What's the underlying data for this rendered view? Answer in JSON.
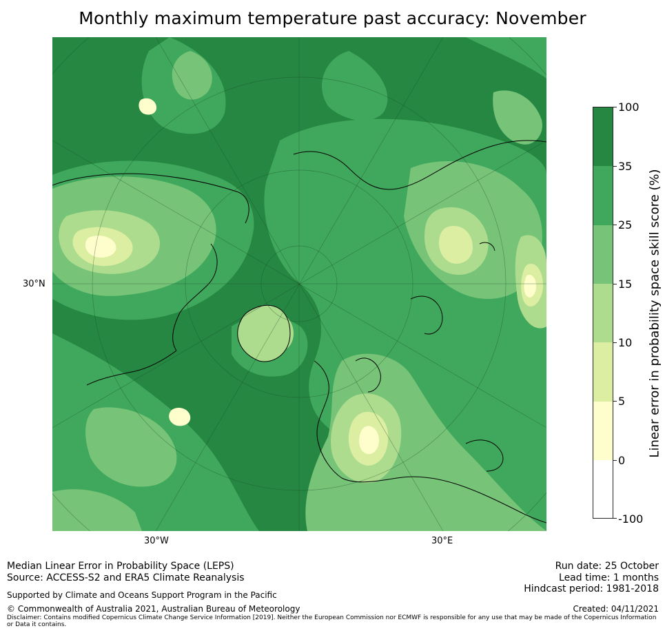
{
  "title": "Monthly maximum temperature past accuracy: November",
  "map": {
    "projection": "North Polar Stereographic",
    "lat_label": "30°N",
    "lon_labels": [
      "30°W",
      "30°E"
    ]
  },
  "colorbar": {
    "title": "Linear error in probability space skill score (%)",
    "tick_labels": [
      "100",
      "35",
      "25",
      "15",
      "10",
      "5",
      "0",
      "-100"
    ],
    "bins": [
      {
        "range": "35 to 100",
        "color": "#258741"
      },
      {
        "range": "25 to 35",
        "color": "#40a85c"
      },
      {
        "range": "15 to 25",
        "color": "#77c479"
      },
      {
        "range": "10 to 15",
        "color": "#aedc8e"
      },
      {
        "range": "5 to 10",
        "color": "#dbeea2"
      },
      {
        "range": "0 to 5",
        "color": "#fdfecb"
      },
      {
        "range": "-100 to 0",
        "color": "#ffffff"
      }
    ]
  },
  "footer": {
    "method": "Median Linear Error in Probability Space (LEPS)",
    "source": "Source: ACCESS-S2 and ERA5 Climate Reanalysis",
    "support": "Supported by Climate and Oceans Support Program in the Pacific",
    "copyright": "© Commonwealth of Australia 2021, Australian Bureau of Meteorology",
    "disclaimer": "Disclaimer: Contains modified Copernicus Climate Change Service Information [2019]. Neither the European Commission nor ECMWF is responsible for any use that may be made of the Copernicus Information or Data it contains.",
    "run_date": "Run date: 25 October",
    "lead_time": "Lead time: 1 months",
    "hindcast": "Hindcast period: 1981-2018",
    "created": "Created: 04/11/2021"
  }
}
